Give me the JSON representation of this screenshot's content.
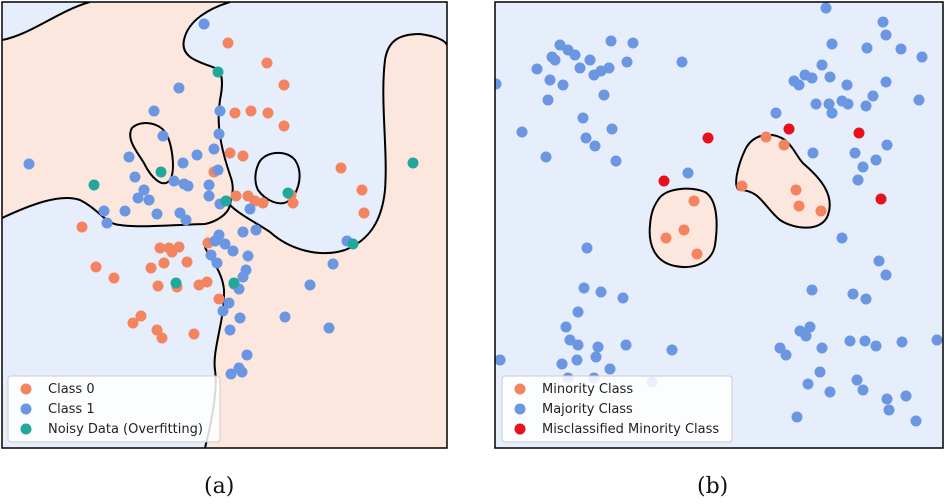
{
  "chart_data": [
    {
      "type": "scatter",
      "caption": "(a)",
      "legend": [
        {
          "label": "Class 0",
          "color": "#F4845F"
        },
        {
          "label": "Class 1",
          "color": "#6B96E2"
        },
        {
          "label": "Noisy Data (Overfitting)",
          "color": "#22A89A"
        }
      ],
      "legend_position": "bottom-left",
      "region_colors": {
        "class_0": "#FCE7DF",
        "class_1": "#E6EEFC"
      },
      "series": [
        {
          "name": "Class 0",
          "color": "#F4845F",
          "points": [
            [
              228,
              43
            ],
            [
              267,
              63
            ],
            [
              284,
              85
            ],
            [
              251,
              111
            ],
            [
              235,
              113
            ],
            [
              268,
              113
            ],
            [
              284,
              126
            ],
            [
              230,
              153
            ],
            [
              243,
              156
            ],
            [
              214,
              172
            ],
            [
              341,
              168
            ],
            [
              362,
              190
            ],
            [
              364,
              213
            ],
            [
              291,
              195
            ],
            [
              236,
              196
            ],
            [
              248,
              196
            ],
            [
              255,
              201
            ],
            [
              263,
              203
            ],
            [
              293,
              203
            ],
            [
              82,
              227
            ],
            [
              208,
              243
            ],
            [
              160,
              248
            ],
            [
              169,
              248
            ],
            [
              179,
              247
            ],
            [
              172,
              252
            ],
            [
              187,
              262
            ],
            [
              164,
              263
            ],
            [
              151,
              268
            ],
            [
              96,
              267
            ],
            [
              114,
              278
            ],
            [
              158,
              286
            ],
            [
              177,
              287
            ],
            [
              199,
              285
            ],
            [
              207,
              282
            ],
            [
              219,
              299
            ],
            [
              141,
              316
            ],
            [
              133,
              323
            ],
            [
              157,
              330
            ],
            [
              162,
              338
            ],
            [
              194,
              334
            ]
          ]
        },
        {
          "name": "Class 1",
          "color": "#6B96E2",
          "points": [
            [
              204,
              24
            ],
            [
              179,
              88
            ],
            [
              154,
              111
            ],
            [
              220,
              111
            ],
            [
              219,
              134
            ],
            [
              163,
              136
            ],
            [
              129,
              157
            ],
            [
              29,
              164
            ],
            [
              214,
              149
            ],
            [
              197,
              155
            ],
            [
              183,
              163
            ],
            [
              135,
              177
            ],
            [
              144,
              190
            ],
            [
              138,
              198
            ],
            [
              174,
              181
            ],
            [
              188,
              186
            ],
            [
              184,
              184
            ],
            [
              209,
              185
            ],
            [
              218,
              170
            ],
            [
              209,
              196
            ],
            [
              220,
              204
            ],
            [
              149,
              200
            ],
            [
              125,
              211
            ],
            [
              104,
              211
            ],
            [
              107,
              223
            ],
            [
              157,
              214
            ],
            [
              180,
              213
            ],
            [
              186,
              220
            ],
            [
              250,
              209
            ],
            [
              219,
              235
            ],
            [
              243,
              232
            ],
            [
              256,
              230
            ],
            [
              215,
              241
            ],
            [
              225,
              244
            ],
            [
              233,
              251
            ],
            [
              248,
              256
            ],
            [
              246,
              270
            ],
            [
              243,
              277
            ],
            [
              211,
              255
            ],
            [
              217,
              263
            ],
            [
              234,
              284
            ],
            [
              239,
              289
            ],
            [
              229,
              303
            ],
            [
              223,
              311
            ],
            [
              240,
              318
            ],
            [
              230,
              330
            ],
            [
              285,
              317
            ],
            [
              329,
              328
            ],
            [
              310,
              285
            ],
            [
              333,
              264
            ],
            [
              347,
              241
            ],
            [
              247,
              355
            ],
            [
              239,
              368
            ],
            [
              242,
              372
            ],
            [
              231,
              374
            ]
          ]
        },
        {
          "name": "Noisy Data (Overfitting)",
          "color": "#22A89A",
          "points": [
            [
              218,
              72
            ],
            [
              161,
              172
            ],
            [
              94,
              185
            ],
            [
              288,
              193
            ],
            [
              226,
              201
            ],
            [
              413,
              163
            ],
            [
              353,
              244
            ],
            [
              176,
              283
            ],
            [
              234,
              283
            ]
          ]
        }
      ]
    },
    {
      "type": "scatter",
      "caption": "(b)",
      "legend": [
        {
          "label": "Minority Class",
          "color": "#F4845F"
        },
        {
          "label": "Majority Class",
          "color": "#6B96E2"
        },
        {
          "label": "Misclassified Minority Class",
          "color": "#E8101C"
        }
      ],
      "legend_position": "bottom-left",
      "region_colors": {
        "minority": "#FCE7DF",
        "majority": "#E6EEFC"
      },
      "series": [
        {
          "name": "Minority Class",
          "color": "#F4845F",
          "points": [
            [
              766,
              137
            ],
            [
              784,
              145
            ],
            [
              742,
              186
            ],
            [
              796,
              190
            ],
            [
              799,
              206
            ],
            [
              821,
              211
            ],
            [
              694,
              201
            ],
            [
              684,
              230
            ],
            [
              666,
              238
            ],
            [
              697,
              254
            ]
          ]
        },
        {
          "name": "Majority Class",
          "color": "#6B96E2",
          "points": [
            [
              826,
              8
            ],
            [
              883,
              22
            ],
            [
              611,
              41
            ],
            [
              633,
              43
            ],
            [
              560,
              45
            ],
            [
              568,
              50
            ],
            [
              552,
              57
            ],
            [
              575,
              55
            ],
            [
              555,
              60
            ],
            [
              590,
              60
            ],
            [
              537,
              69
            ],
            [
              580,
              68
            ],
            [
              601,
              71
            ],
            [
              609,
              68
            ],
            [
              627,
              62
            ],
            [
              682,
              62
            ],
            [
              550,
              80
            ],
            [
              563,
              85
            ],
            [
              496,
              84
            ],
            [
              594,
              75
            ],
            [
              604,
              95
            ],
            [
              548,
              100
            ],
            [
              832,
              44
            ],
            [
              867,
              48
            ],
            [
              901,
              49
            ],
            [
              886,
              35
            ],
            [
              922,
              57
            ],
            [
              822,
              65
            ],
            [
              830,
              77
            ],
            [
              805,
              75
            ],
            [
              812,
              78
            ],
            [
              794,
              81
            ],
            [
              799,
              85
            ],
            [
              886,
              82
            ],
            [
              847,
              85
            ],
            [
              873,
              96
            ],
            [
              829,
              104
            ],
            [
              816,
              104
            ],
            [
              842,
              101
            ],
            [
              848,
              104
            ],
            [
              866,
              106
            ],
            [
              832,
              113
            ],
            [
              919,
              100
            ],
            [
              776,
              113
            ],
            [
              583,
              118
            ],
            [
              612,
              129
            ],
            [
              522,
              132
            ],
            [
              586,
              138
            ],
            [
              595,
              146
            ],
            [
              616,
              161
            ],
            [
              546,
              157
            ],
            [
              688,
              173
            ],
            [
              813,
              153
            ],
            [
              855,
              153
            ],
            [
              887,
              145
            ],
            [
              863,
              167
            ],
            [
              876,
              160
            ],
            [
              858,
              180
            ],
            [
              842,
              238
            ],
            [
              587,
              248
            ],
            [
              879,
              261
            ],
            [
              886,
              275
            ],
            [
              584,
              288
            ],
            [
              601,
              292
            ],
            [
              623,
              298
            ],
            [
              812,
              290
            ],
            [
              853,
              294
            ],
            [
              866,
              299
            ],
            [
              578,
              312
            ],
            [
              566,
              327
            ],
            [
              810,
              327
            ],
            [
              800,
              331
            ],
            [
              806,
              336
            ],
            [
              578,
              345
            ],
            [
              570,
              340
            ],
            [
              626,
              345
            ],
            [
              672,
              350
            ],
            [
              780,
              348
            ],
            [
              786,
              355
            ],
            [
              822,
              348
            ],
            [
              850,
              341
            ],
            [
              865,
              341
            ],
            [
              876,
              346
            ],
            [
              937,
              340
            ],
            [
              902,
              342
            ],
            [
              598,
              347
            ],
            [
              596,
              357
            ],
            [
              500,
              360
            ],
            [
              577,
              360
            ],
            [
              562,
              364
            ],
            [
              610,
              369
            ],
            [
              568,
              378
            ],
            [
              594,
              378
            ],
            [
              652,
              382
            ],
            [
              820,
              372
            ],
            [
              808,
              384
            ],
            [
              857,
              380
            ],
            [
              863,
              390
            ],
            [
              887,
              399
            ],
            [
              906,
              396
            ],
            [
              889,
              410
            ],
            [
              916,
              421
            ],
            [
              797,
              417
            ],
            [
              830,
              392
            ]
          ]
        },
        {
          "name": "Misclassified Minority Class",
          "color": "#E8101C",
          "points": [
            [
              708,
              138
            ],
            [
              789,
              129
            ],
            [
              859,
              133
            ],
            [
              664,
              181
            ],
            [
              881,
              199
            ]
          ]
        }
      ]
    }
  ]
}
